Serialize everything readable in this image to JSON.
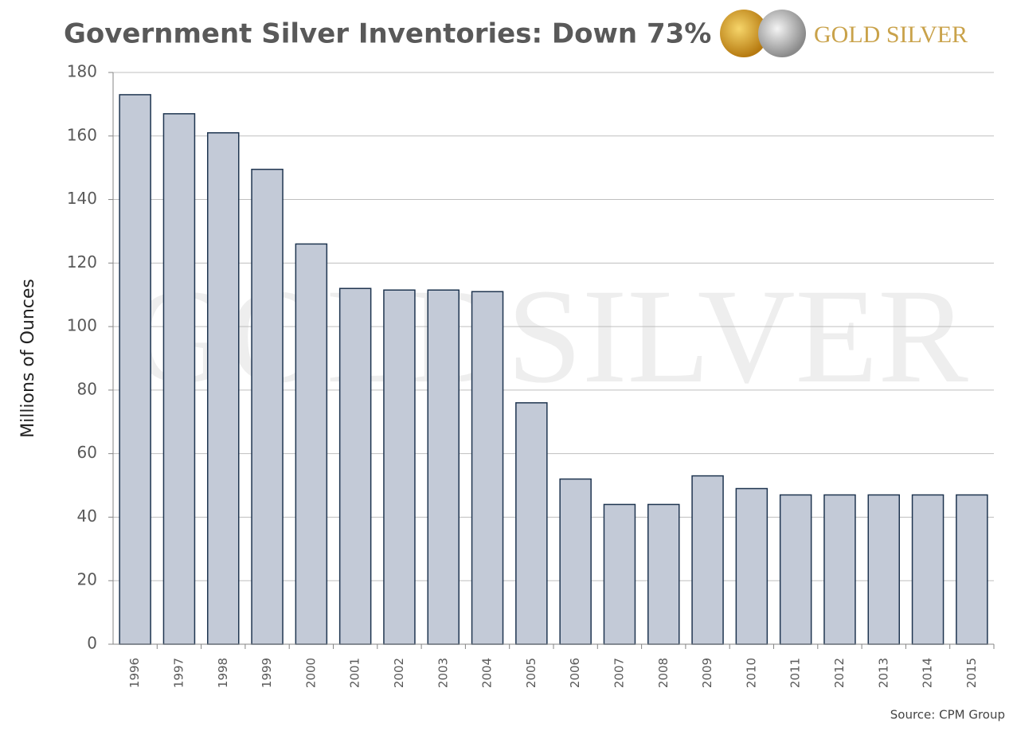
{
  "chart_data": {
    "type": "bar",
    "title": "Government Silver Inventories: Down 73%",
    "logo": "GOLD SILVER",
    "watermark": "GOLDSILVER",
    "y_label": "Millions of Ounces",
    "source": "Source: CPM Group",
    "categories": [
      "1996",
      "1997",
      "1998",
      "1999",
      "2000",
      "2001",
      "2002",
      "2003",
      "2004",
      "2005",
      "2006",
      "2007",
      "2008",
      "2009",
      "2010",
      "2011",
      "2012",
      "2013",
      "2014",
      "2015"
    ],
    "values": [
      173,
      167,
      161,
      149.5,
      126,
      112,
      111.5,
      111.5,
      111,
      76,
      52,
      44,
      44,
      53,
      49,
      47,
      47,
      47,
      47,
      47
    ],
    "color": "#c3cad7",
    "edge_color": "#1f3550",
    "ylim": [
      0,
      180
    ],
    "yticks": [
      0,
      20,
      40,
      60,
      80,
      100,
      120,
      140,
      160,
      180
    ],
    "grid": true
  }
}
